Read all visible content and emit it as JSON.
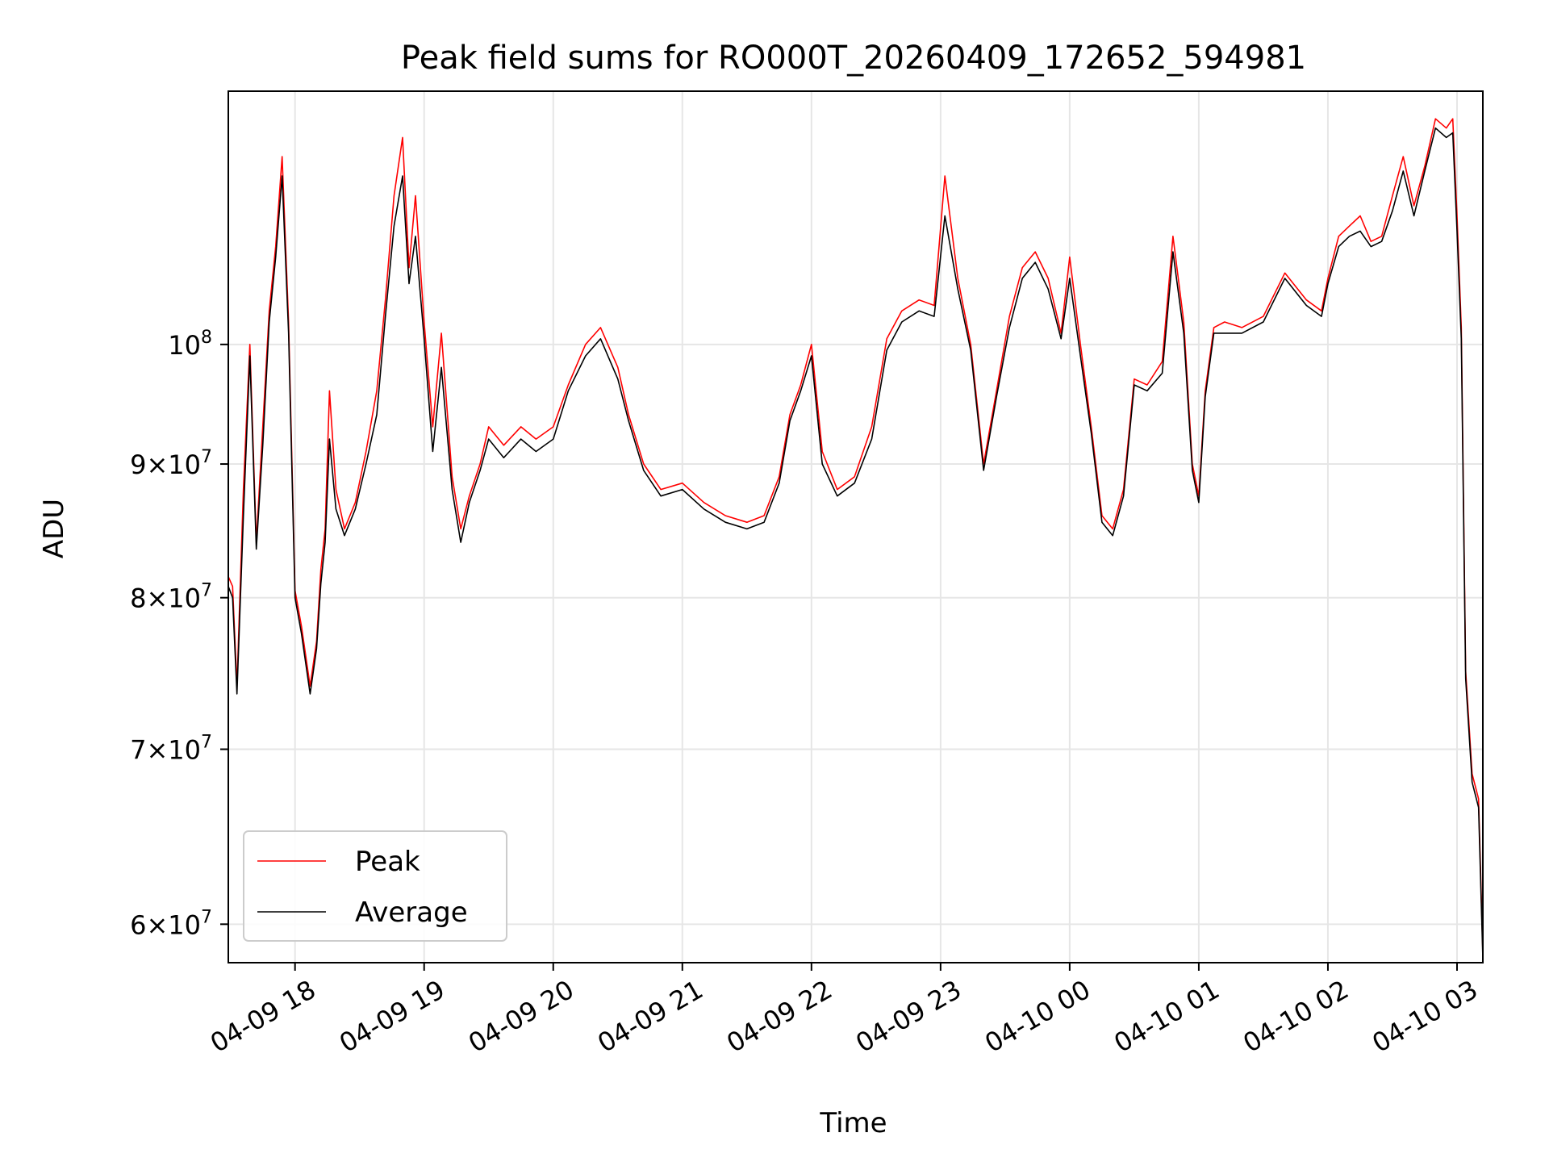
{
  "chart_data": {
    "type": "line",
    "title": "Peak field sums for RO000T_20260409_172652_594981",
    "xlabel": "Time",
    "ylabel": "ADU",
    "y_scale": "log",
    "ylim": [
      58000000,
      125000000
    ],
    "xlim": [
      "2026-04-09 17:29",
      "2026-04-10 03:12"
    ],
    "grid": true,
    "legend_position": "lower-left",
    "x_tick_labels": [
      "04-09 18",
      "04-09 19",
      "04-09 20",
      "04-09 21",
      "04-09 22",
      "04-09 23",
      "04-10 00",
      "04-10 01",
      "04-10 02",
      "04-10 03"
    ],
    "x_tick_values": [
      "2026-04-09 18:00",
      "2026-04-09 19:00",
      "2026-04-09 20:00",
      "2026-04-09 21:00",
      "2026-04-09 22:00",
      "2026-04-09 23:00",
      "2026-04-10 00:00",
      "2026-04-10 01:00",
      "2026-04-10 02:00",
      "2026-04-10 03:00"
    ],
    "y_ticks": [
      {
        "value": 100000000,
        "mantissa": "",
        "base": "10",
        "exp": "8"
      },
      {
        "value": 90000000,
        "mantissa": "9",
        "base": "10",
        "exp": "7"
      },
      {
        "value": 80000000,
        "mantissa": "8",
        "base": "10",
        "exp": "7"
      },
      {
        "value": 70000000,
        "mantissa": "7",
        "base": "10",
        "exp": "7"
      },
      {
        "value": 60000000,
        "mantissa": "6",
        "base": "10",
        "exp": "7"
      }
    ],
    "x": [
      "2026-04-09 17:29",
      "2026-04-09 17:31",
      "2026-04-09 17:33",
      "2026-04-09 17:36",
      "2026-04-09 17:39",
      "2026-04-09 17:42",
      "2026-04-09 17:45",
      "2026-04-09 17:48",
      "2026-04-09 17:51",
      "2026-04-09 17:54",
      "2026-04-09 17:57",
      "2026-04-09 18:00",
      "2026-04-09 18:03",
      "2026-04-09 18:07",
      "2026-04-09 18:10",
      "2026-04-09 18:12",
      "2026-04-09 18:14",
      "2026-04-09 18:16",
      "2026-04-09 18:19",
      "2026-04-09 18:23",
      "2026-04-09 18:28",
      "2026-04-09 18:33",
      "2026-04-09 18:38",
      "2026-04-09 18:42",
      "2026-04-09 18:46",
      "2026-04-09 18:50",
      "2026-04-09 18:53",
      "2026-04-09 18:56",
      "2026-04-09 19:00",
      "2026-04-09 19:04",
      "2026-04-09 19:08",
      "2026-04-09 19:13",
      "2026-04-09 19:17",
      "2026-04-09 19:21",
      "2026-04-09 19:26",
      "2026-04-09 19:30",
      "2026-04-09 19:37",
      "2026-04-09 19:45",
      "2026-04-09 19:52",
      "2026-04-09 20:00",
      "2026-04-09 20:07",
      "2026-04-09 20:15",
      "2026-04-09 20:22",
      "2026-04-09 20:30",
      "2026-04-09 20:35",
      "2026-04-09 20:42",
      "2026-04-09 20:50",
      "2026-04-09 21:00",
      "2026-04-09 21:10",
      "2026-04-09 21:20",
      "2026-04-09 21:30",
      "2026-04-09 21:38",
      "2026-04-09 21:45",
      "2026-04-09 21:50",
      "2026-04-09 21:55",
      "2026-04-09 22:00",
      "2026-04-09 22:05",
      "2026-04-09 22:12",
      "2026-04-09 22:20",
      "2026-04-09 22:28",
      "2026-04-09 22:35",
      "2026-04-09 22:42",
      "2026-04-09 22:50",
      "2026-04-09 22:57",
      "2026-04-09 23:02",
      "2026-04-09 23:08",
      "2026-04-09 23:14",
      "2026-04-09 23:20",
      "2026-04-09 23:26",
      "2026-04-09 23:32",
      "2026-04-09 23:38",
      "2026-04-09 23:44",
      "2026-04-09 23:50",
      "2026-04-09 23:56",
      "2026-04-10 00:00",
      "2026-04-10 00:05",
      "2026-04-10 00:10",
      "2026-04-10 00:15",
      "2026-04-10 00:20",
      "2026-04-10 00:25",
      "2026-04-10 00:30",
      "2026-04-10 00:36",
      "2026-04-10 00:43",
      "2026-04-10 00:48",
      "2026-04-10 00:53",
      "2026-04-10 00:57",
      "2026-04-10 01:00",
      "2026-04-10 01:03",
      "2026-04-10 01:07",
      "2026-04-10 01:12",
      "2026-04-10 01:20",
      "2026-04-10 01:30",
      "2026-04-10 01:40",
      "2026-04-10 01:50",
      "2026-04-10 01:57",
      "2026-04-10 02:00",
      "2026-04-10 02:05",
      "2026-04-10 02:10",
      "2026-04-10 02:15",
      "2026-04-10 02:20",
      "2026-04-10 02:25",
      "2026-04-10 02:30",
      "2026-04-10 02:35",
      "2026-04-10 02:40",
      "2026-04-10 02:45",
      "2026-04-10 02:50",
      "2026-04-10 02:55",
      "2026-04-10 02:58",
      "2026-04-10 03:00",
      "2026-04-10 03:02",
      "2026-04-10 03:04",
      "2026-04-10 03:07",
      "2026-04-10 03:10",
      "2026-04-10 03:12"
    ],
    "series": [
      {
        "name": "Peak",
        "color": "#ff0000",
        "values": [
          81500000,
          80800000,
          74000000,
          88000000,
          100000000,
          84000000,
          93000000,
          103000000,
          109000000,
          118000000,
          102000000,
          80500000,
          78000000,
          74000000,
          77000000,
          82000000,
          85000000,
          96000000,
          88000000,
          85000000,
          87000000,
          91000000,
          96000000,
          104000000,
          114000000,
          120000000,
          107000000,
          114000000,
          102000000,
          93000000,
          101000000,
          89000000,
          85000000,
          87500000,
          90000000,
          93000000,
          91500000,
          93000000,
          92000000,
          93000000,
          96500000,
          100000000,
          101500000,
          98000000,
          94000000,
          90000000,
          88000000,
          88500000,
          87000000,
          86000000,
          85500000,
          86000000,
          89000000,
          94000000,
          96500000,
          100000000,
          91000000,
          88000000,
          89000000,
          93000000,
          100500000,
          103000000,
          104000000,
          103500000,
          116000000,
          106000000,
          100000000,
          90000000,
          96000000,
          102500000,
          107000000,
          108500000,
          106000000,
          101000000,
          108000000,
          100000000,
          93000000,
          86000000,
          85000000,
          88000000,
          97000000,
          96500000,
          98500000,
          110000000,
          102000000,
          90000000,
          87500000,
          96000000,
          101500000,
          102000000,
          101500000,
          102500000,
          106500000,
          104000000,
          103000000,
          106000000,
          110000000,
          111000000,
          112000000,
          109500000,
          110000000,
          114000000,
          118000000,
          113000000,
          117000000,
          122000000,
          121000000,
          122000000,
          112000000,
          101500000,
          75000000,
          68500000,
          67000000,
          58500000
        ]
      },
      {
        "name": "Average",
        "color": "#000000",
        "values": [
          80800000,
          80000000,
          73500000,
          86000000,
          99000000,
          83500000,
          91500000,
          102000000,
          108000000,
          116000000,
          101000000,
          80000000,
          77500000,
          73500000,
          76500000,
          81000000,
          84000000,
          92000000,
          86500000,
          84500000,
          86500000,
          90000000,
          94000000,
          102500000,
          111000000,
          116000000,
          105500000,
          110000000,
          100500000,
          91000000,
          98000000,
          88000000,
          84000000,
          87000000,
          89500000,
          92000000,
          90500000,
          92000000,
          91000000,
          92000000,
          96000000,
          99000000,
          100500000,
          97000000,
          93500000,
          89500000,
          87500000,
          88000000,
          86500000,
          85500000,
          85000000,
          85500000,
          88500000,
          93500000,
          96000000,
          99000000,
          90000000,
          87500000,
          88500000,
          92000000,
          99500000,
          102000000,
          103000000,
          102500000,
          112000000,
          105000000,
          99500000,
          89500000,
          95500000,
          101500000,
          106000000,
          107500000,
          105000000,
          100500000,
          106000000,
          99000000,
          92500000,
          85500000,
          84500000,
          87500000,
          96500000,
          96000000,
          97500000,
          108500000,
          101000000,
          89500000,
          87000000,
          95500000,
          101000000,
          101000000,
          101000000,
          102000000,
          106000000,
          103500000,
          102500000,
          105500000,
          109000000,
          110000000,
          110500000,
          109000000,
          109500000,
          112500000,
          116500000,
          112000000,
          116500000,
          121000000,
          120000000,
          120500000,
          110500000,
          100500000,
          74500000,
          68000000,
          66500000,
          58200000
        ]
      }
    ]
  }
}
